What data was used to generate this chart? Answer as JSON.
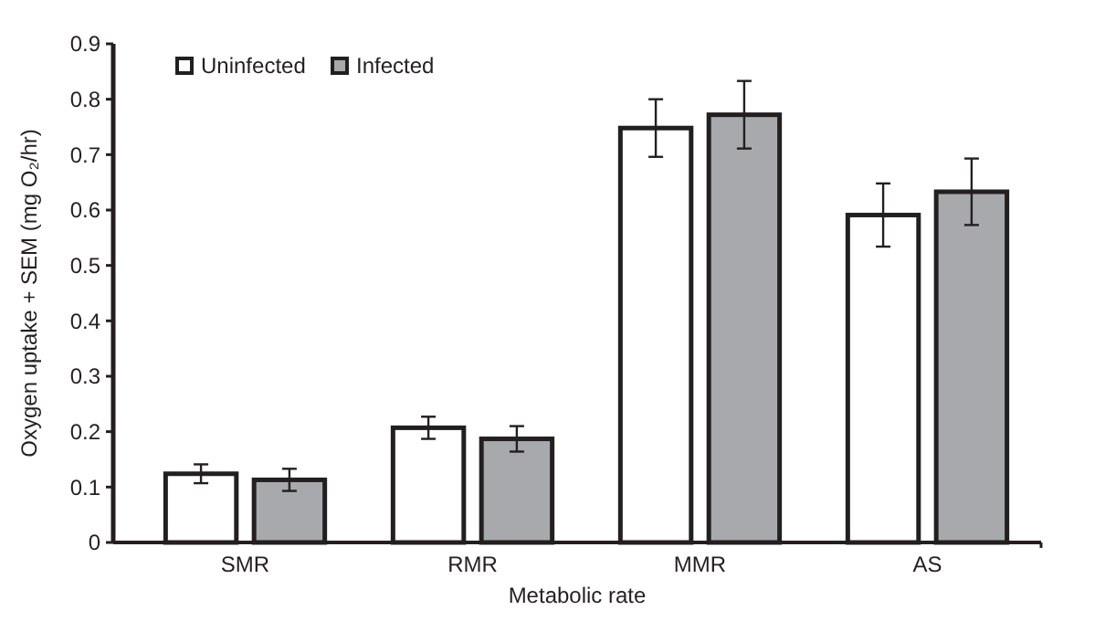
{
  "chart_data": {
    "type": "bar",
    "xlabel": "Metabolic rate",
    "ylabel": "Oxygen uptake + SEM (mg O₂/hr)",
    "categories": [
      "SMR",
      "RMR",
      "MMR",
      "AS"
    ],
    "series": [
      {
        "name": "Uninfected",
        "color": "#ffffff",
        "values": [
          0.124,
          0.207,
          0.748,
          0.591
        ],
        "errors": [
          0.017,
          0.02,
          0.052,
          0.057
        ]
      },
      {
        "name": "Infected",
        "color": "#a7a9ac",
        "values": [
          0.113,
          0.187,
          0.772,
          0.633
        ],
        "errors": [
          0.02,
          0.023,
          0.061,
          0.06
        ]
      }
    ],
    "ylim": [
      0,
      0.9
    ],
    "yticks": [
      0,
      0.1,
      0.2,
      0.3,
      0.4,
      0.5,
      0.6,
      0.7,
      0.8,
      0.9
    ],
    "grid": false,
    "legend": "top left"
  }
}
